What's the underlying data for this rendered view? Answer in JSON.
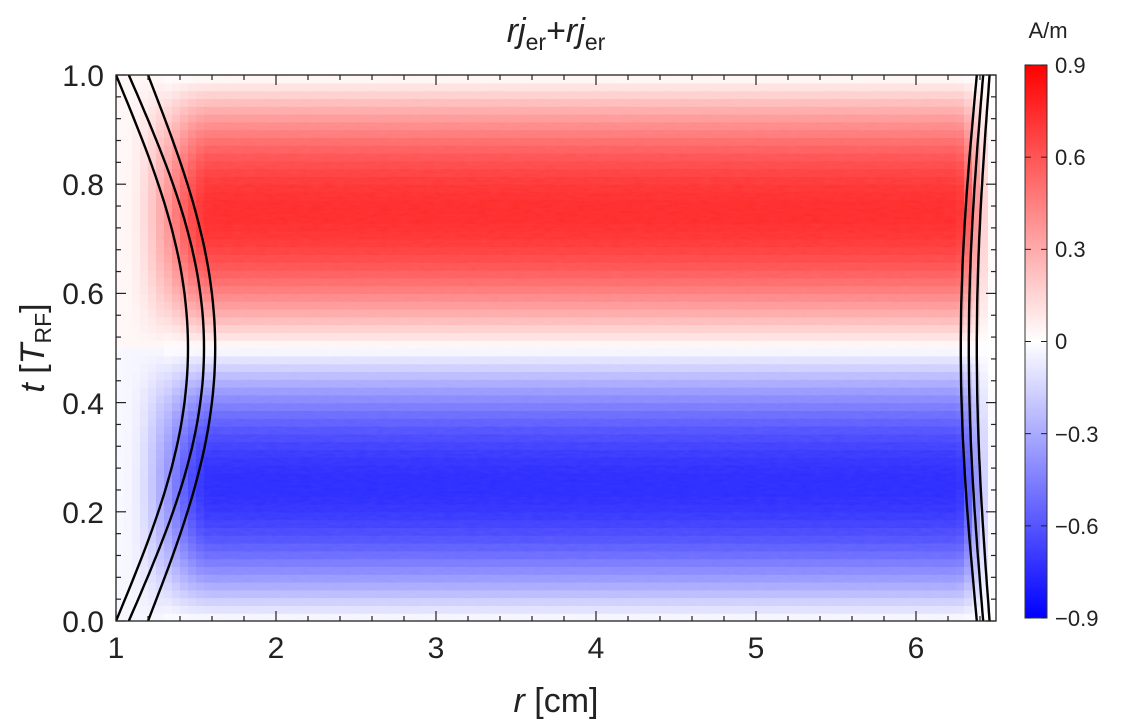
{
  "chart_data": {
    "type": "heatmap",
    "title": {
      "parts": [
        {
          "text": "rj",
          "italic": true,
          "sub": false
        },
        {
          "text": "er",
          "italic": false,
          "sub": true
        },
        {
          "text": "+",
          "italic": false,
          "sub": false
        },
        {
          "text": "rj",
          "italic": true,
          "sub": false
        },
        {
          "text": "er",
          "italic": false,
          "sub": true
        }
      ]
    },
    "xlabel": {
      "var": "r",
      "unit": " [cm]"
    },
    "ylabel": {
      "var": "t",
      "open": " [",
      "T": "T",
      "sub": "RF",
      "close": "]"
    },
    "xlim": [
      1,
      6.5
    ],
    "ylim": [
      0,
      1
    ],
    "x_ticks": [
      1,
      2,
      3,
      4,
      5,
      6
    ],
    "x_tick_labels": [
      "1",
      "2",
      "3",
      "4",
      "5",
      "6"
    ],
    "y_ticks": [
      0,
      0.2,
      0.4,
      0.6,
      0.8,
      1.0
    ],
    "y_tick_labels": [
      "0.0",
      "0.2",
      "0.4",
      "0.6",
      "0.8",
      "1.0"
    ],
    "colorbar": {
      "unit": "A/m",
      "range": [
        -0.9,
        0.9
      ],
      "ticks": [
        0.9,
        0.6,
        0.3,
        0,
        -0.3,
        -0.6,
        -0.9
      ],
      "tick_labels": [
        "0.9",
        "0.6",
        "0.3",
        "0",
        "−0.3",
        "−0.6",
        "−0.9"
      ],
      "color_min": "#0000ff",
      "color_zero": "#ffffff",
      "color_max": "#ff0000"
    },
    "field": {
      "description_formula": "value(r,t) = amplitude * sin(2*pi*t) * radial_profile(r)",
      "amplitude": -0.75,
      "left_sheath_edge_r": [
        1.05,
        1.6
      ],
      "right_sheath_edge_r": [
        6.25,
        6.5
      ]
    },
    "contours": {
      "color": "#000000",
      "left": [
        {
          "r_min": 1.0,
          "r_max": 1.45
        },
        {
          "r_min": 1.08,
          "r_max": 1.55
        },
        {
          "r_min": 1.2,
          "r_max": 1.62
        }
      ],
      "right": [
        {
          "r_min": 6.38,
          "r_max": 6.28
        },
        {
          "r_min": 6.42,
          "r_max": 6.33
        },
        {
          "r_min": 6.46,
          "r_max": 6.38
        }
      ]
    }
  }
}
